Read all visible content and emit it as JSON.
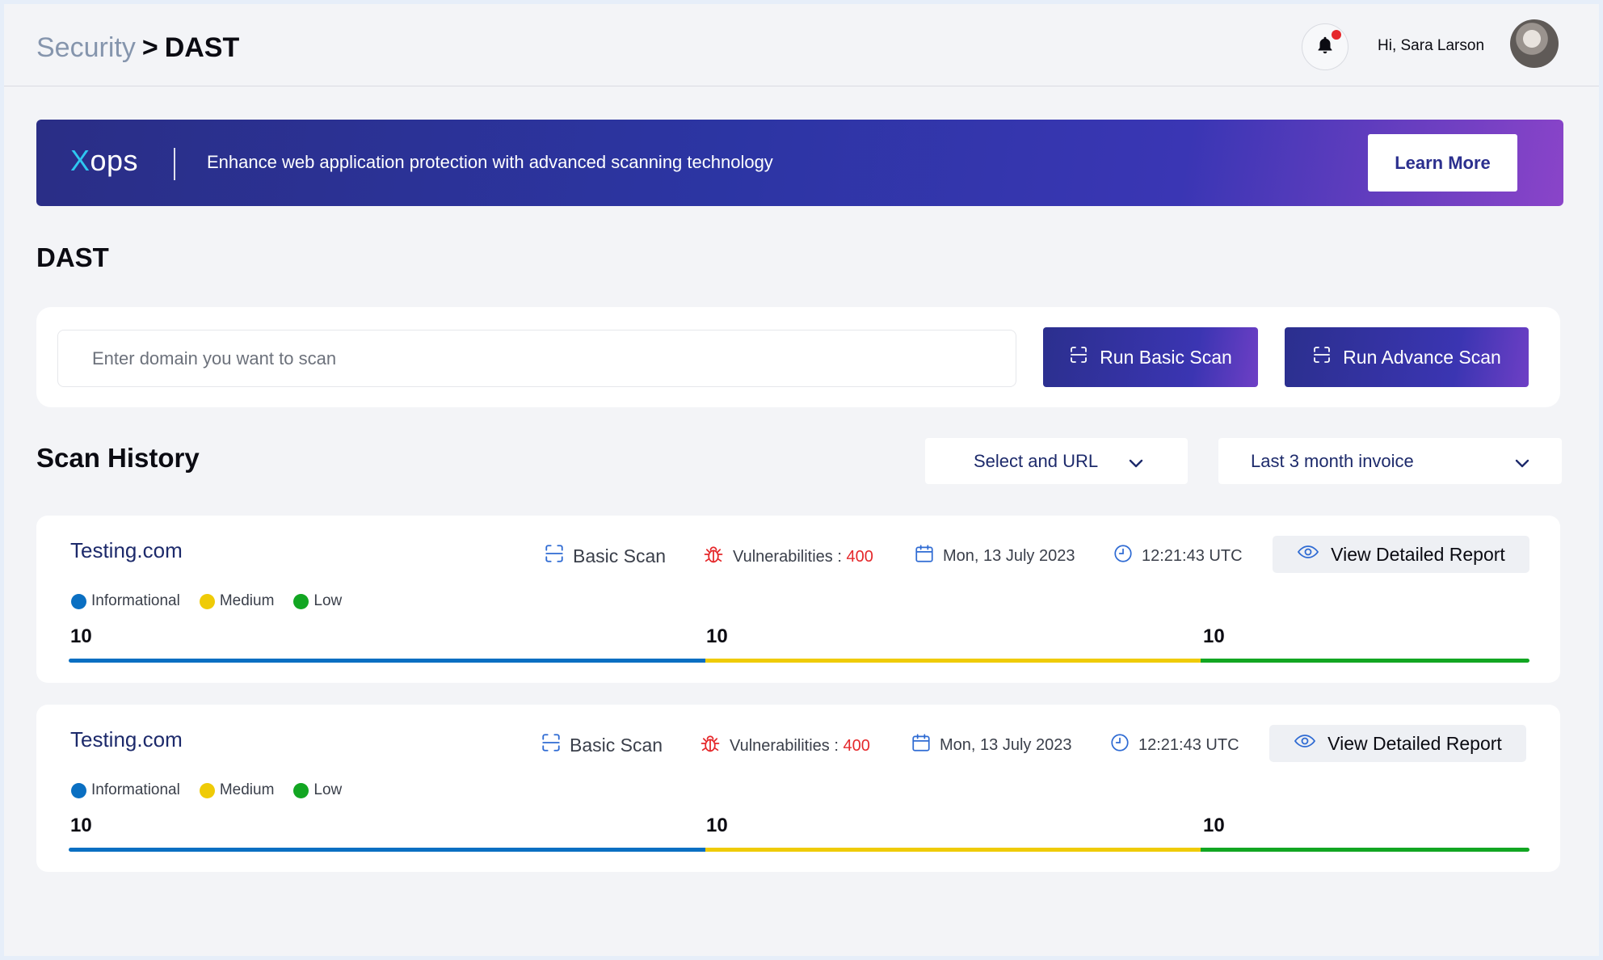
{
  "header": {
    "breadcrumb": {
      "parent": "Security",
      "separator": ">",
      "current": "DAST"
    },
    "notifications": {
      "icon": "bell-icon",
      "has_unread": true
    },
    "greeting": "Hi, Sara Larson"
  },
  "banner": {
    "logo": {
      "x": "X",
      "rest": "ops"
    },
    "text": "Enhance web application protection with advanced scanning technology",
    "cta": "Learn More"
  },
  "section_title": "DAST",
  "scan_form": {
    "placeholder": "Enter domain you want to scan",
    "basic_button": "Run Basic Scan",
    "advance_button": "Run Advance Scan"
  },
  "history": {
    "title": "Scan History",
    "url_filter": "Select and URL",
    "period_filter": "Last 3 month invoice",
    "scans": [
      {
        "domain": "Testing.com",
        "scan_type": "Basic Scan",
        "vuln_label": "Vulnerabilities :",
        "vuln_count": "400",
        "date": "Mon, 13 July  2023",
        "time": "12:21:43  UTC",
        "report_button": "View Detailed Report",
        "legend": [
          "Informational",
          "Medium",
          "Low"
        ],
        "counts": [
          "10",
          "10",
          "10"
        ]
      },
      {
        "domain": "Testing.com",
        "scan_type": "Basic Scan",
        "vuln_label": "Vulnerabilities :",
        "vuln_count": "400",
        "date": "Mon, 13 July  2023",
        "time": "12:21:43  UTC",
        "report_button": "View Detailed Report",
        "legend": [
          "Informational",
          "Medium",
          "Low"
        ],
        "counts": [
          "10",
          "10",
          "10"
        ]
      }
    ]
  },
  "colors": {
    "informational": "#0a6fc2",
    "medium": "#efcb07",
    "low": "#12a622",
    "accent": "#2b2f8e",
    "danger": "#e5282b"
  }
}
